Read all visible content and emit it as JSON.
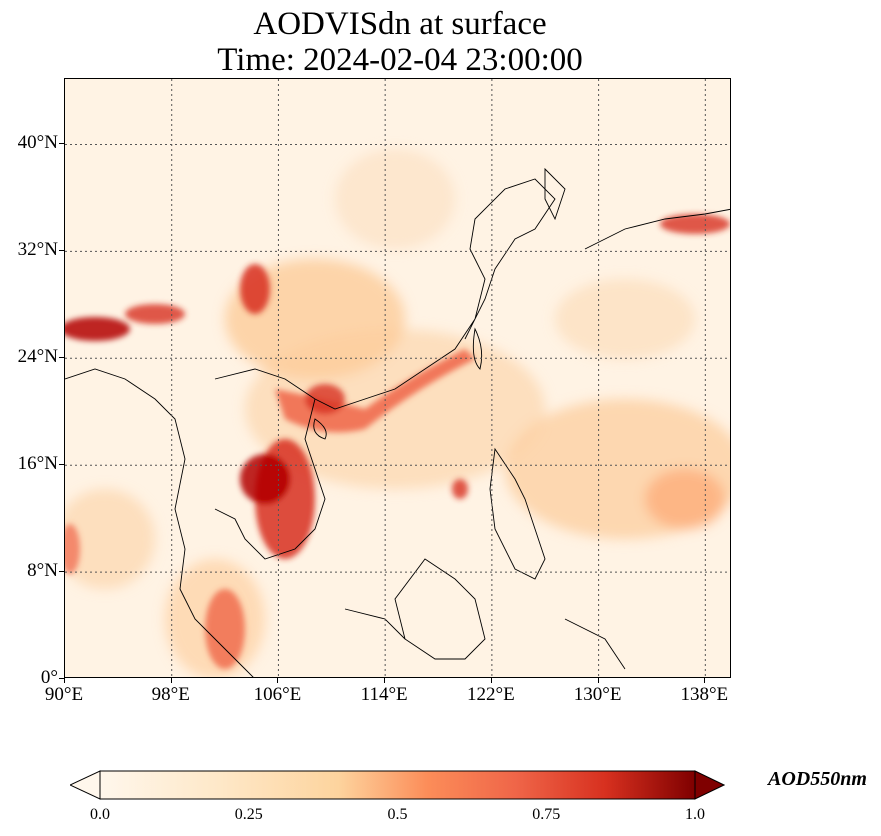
{
  "title": {
    "line1": "AODVISdn at surface",
    "line2": "Time: 2024-02-04 23:00:00"
  },
  "map": {
    "lat_ticks": [
      "0°",
      "8°N",
      "16°N",
      "24°N",
      "32°N",
      "40°N"
    ],
    "lon_ticks": [
      "90°E",
      "98°E",
      "106°E",
      "114°E",
      "122°E",
      "130°E",
      "138°E"
    ],
    "gridlines": true,
    "colormap": "OrRd",
    "colors": {
      "low": "#fff7ec",
      "mid": "#fc8d59",
      "high": "#7f0000",
      "coast": "#000000",
      "grid": "#555555"
    }
  },
  "colorbar": {
    "label": "AOD550nm",
    "ticks": [
      "0.0",
      "0.25",
      "0.5",
      "0.75",
      "1.0"
    ],
    "range": [
      0.0,
      1.0
    ],
    "extend": "both"
  }
}
